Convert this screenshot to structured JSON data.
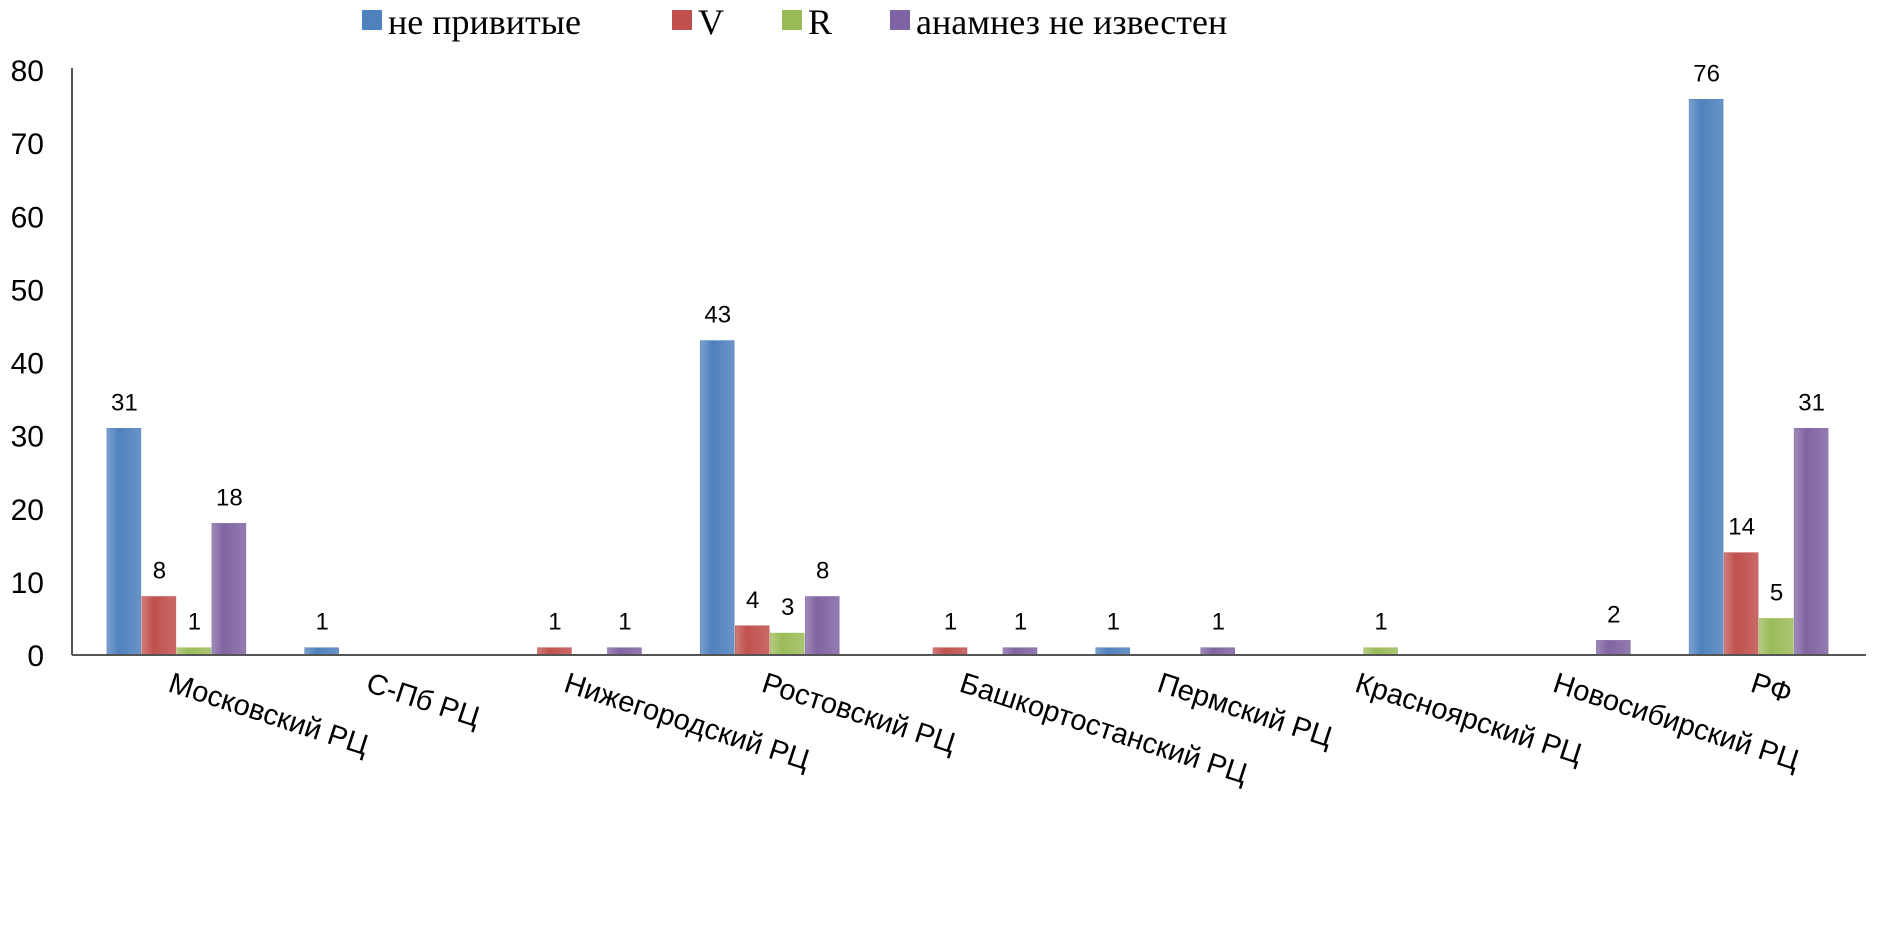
{
  "chart_data": {
    "type": "bar",
    "categories": [
      "Московский РЦ",
      "С-Пб РЦ",
      "Нижегородский РЦ",
      "Ростовский РЦ",
      "Башкортостанский РЦ",
      "Пермский РЦ",
      "Красноярский РЦ",
      "Новосибирский РЦ",
      "РФ"
    ],
    "series": [
      {
        "name": "не привитые",
        "color": "#4F81BD",
        "values": [
          31,
          1,
          0,
          43,
          0,
          1,
          0,
          0,
          76
        ]
      },
      {
        "name": "V",
        "color": "#C0504D",
        "values": [
          8,
          0,
          1,
          4,
          1,
          0,
          0,
          0,
          14
        ]
      },
      {
        "name": "R",
        "color": "#9BBB59",
        "values": [
          1,
          0,
          0,
          3,
          0,
          0,
          1,
          0,
          5
        ]
      },
      {
        "name": "анамнез не известен",
        "color": "#8064A2",
        "values": [
          18,
          0,
          1,
          8,
          1,
          1,
          0,
          2,
          31
        ]
      }
    ],
    "yticks": [
      "0",
      "10",
      "20",
      "30",
      "40",
      "50",
      "60",
      "70",
      "80"
    ],
    "ylim": [
      0,
      80
    ],
    "title": "",
    "xlabel": "",
    "ylabel": "",
    "legend_position": "top",
    "grid": false
  }
}
